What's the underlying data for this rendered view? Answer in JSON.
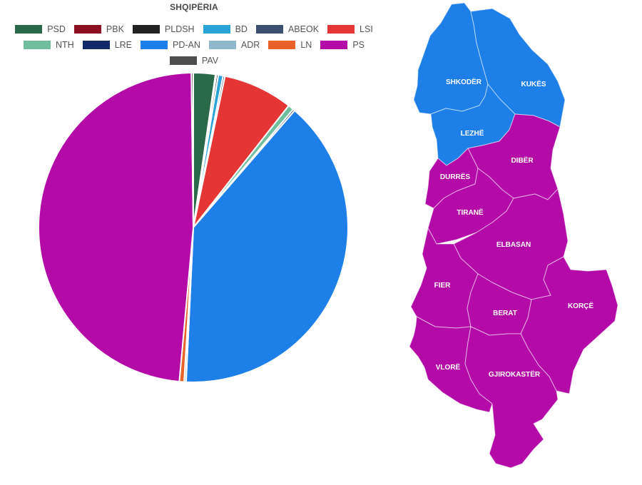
{
  "chart_data": [
    {
      "type": "pie",
      "title": "SHQIPËRIA",
      "legend_position": "top",
      "series": [
        {
          "name": "PSD",
          "value": 2.3,
          "color": "#2a6a4a"
        },
        {
          "name": "PBK",
          "value": 0.1,
          "color": "#8c1020"
        },
        {
          "name": "PLDSH",
          "value": 0.2,
          "color": "#222222"
        },
        {
          "name": "BD",
          "value": 0.5,
          "color": "#2aa3d8"
        },
        {
          "name": "ABEOK",
          "value": 0.2,
          "color": "#3a4f72"
        },
        {
          "name": "LSI",
          "value": 7.3,
          "color": "#e63535"
        },
        {
          "name": "NTH",
          "value": 0.6,
          "color": "#6fbf9f"
        },
        {
          "name": "LRE",
          "value": 0.2,
          "color": "#122a6a"
        },
        {
          "name": "PD-AN",
          "value": 39.5,
          "color": "#1f7fe8"
        },
        {
          "name": "ADR",
          "value": 0.2,
          "color": "#8fb8cc"
        },
        {
          "name": "LN",
          "value": 0.5,
          "color": "#e8622a"
        },
        {
          "name": "PS",
          "value": 48.5,
          "color": "#b30aa8"
        },
        {
          "name": "PAV",
          "value": 0.2,
          "color": "#4d4d4d"
        }
      ]
    }
  ],
  "map": {
    "colors": {
      "PS": "#b30aa8",
      "PD-AN": "#1f7fe8"
    },
    "regions": [
      {
        "name": "SHKODËR",
        "winner": "PD-AN"
      },
      {
        "name": "KUKËS",
        "winner": "PD-AN"
      },
      {
        "name": "LEZHË",
        "winner": "PD-AN"
      },
      {
        "name": "DIBËR",
        "winner": "PS"
      },
      {
        "name": "DURRËS",
        "winner": "PS"
      },
      {
        "name": "TIRANË",
        "winner": "PS"
      },
      {
        "name": "ELBASAN",
        "winner": "PS"
      },
      {
        "name": "FIER",
        "winner": "PS"
      },
      {
        "name": "BERAT",
        "winner": "PS"
      },
      {
        "name": "KORÇË",
        "winner": "PS"
      },
      {
        "name": "VLORË",
        "winner": "PS"
      },
      {
        "name": "GJIROKASTËR",
        "winner": "PS"
      }
    ]
  }
}
